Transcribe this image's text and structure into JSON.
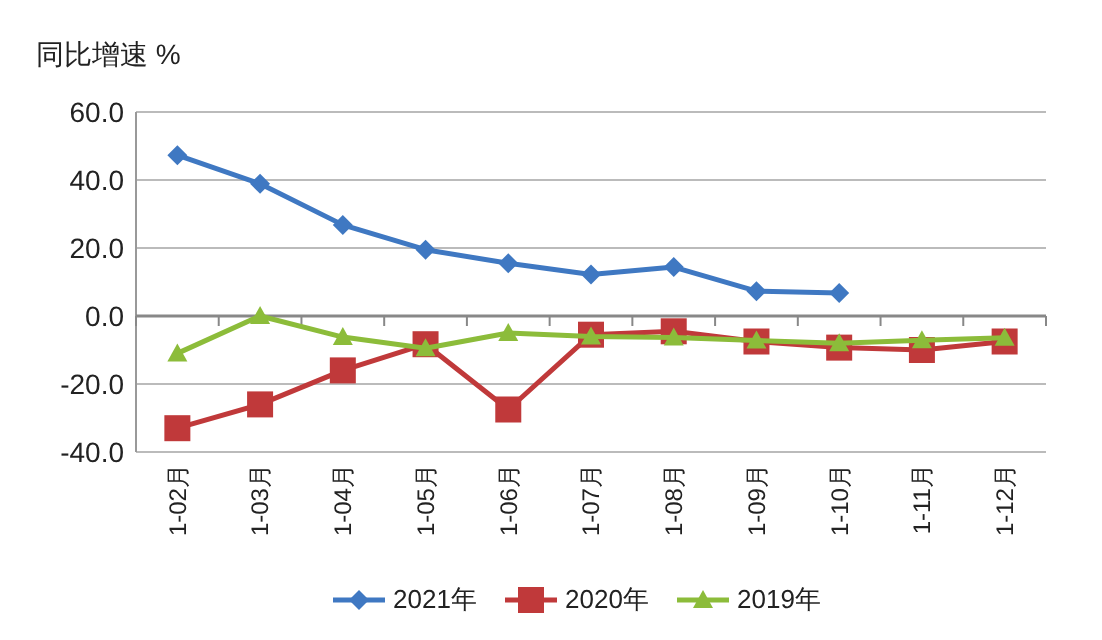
{
  "chart_data": {
    "type": "line",
    "ylabel": "同比增速 %",
    "categories": [
      "1-02月",
      "1-03月",
      "1-04月",
      "1-05月",
      "1-06月",
      "1-07月",
      "1-08月",
      "1-09月",
      "1-10月",
      "1-11月",
      "1-12月"
    ],
    "ylim": [
      -40,
      60
    ],
    "yticks": [
      {
        "value": -40,
        "label": "-40.0"
      },
      {
        "value": -20,
        "label": "-20.0"
      },
      {
        "value": 0,
        "label": "0.0"
      },
      {
        "value": 20,
        "label": "20.0"
      },
      {
        "value": 40,
        "label": "40.0"
      },
      {
        "value": 60,
        "label": "60.0"
      }
    ],
    "grid": "y",
    "legend": "bottom",
    "series": [
      {
        "name": "2021年",
        "color": "#3f78c2",
        "marker": "diamond",
        "values": [
          47.3,
          38.9,
          26.8,
          19.5,
          15.5,
          12.2,
          14.4,
          7.3,
          6.8,
          null,
          null
        ]
      },
      {
        "name": "2020年",
        "color": "#c0393a",
        "marker": "square",
        "values": [
          -33,
          -26,
          -16,
          -8.3,
          -27.5,
          -5.5,
          -4.5,
          -7.5,
          -9.3,
          -10,
          -7.5
        ]
      },
      {
        "name": "2019年",
        "color": "#8cbc3a",
        "marker": "triangle",
        "values": [
          -11,
          0,
          -6.2,
          -9.5,
          -5,
          -6,
          -6.3,
          -7.2,
          -8,
          -7.1,
          -6.4
        ]
      }
    ]
  }
}
